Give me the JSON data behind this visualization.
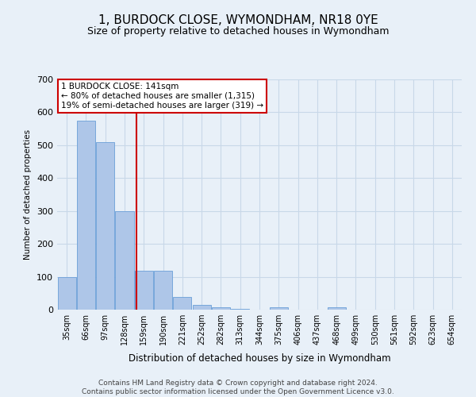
{
  "title": "1, BURDOCK CLOSE, WYMONDHAM, NR18 0YE",
  "subtitle": "Size of property relative to detached houses in Wymondham",
  "xlabel": "Distribution of detached houses by size in Wymondham",
  "ylabel": "Number of detached properties",
  "footnote": "Contains HM Land Registry data © Crown copyright and database right 2024.\nContains public sector information licensed under the Open Government Licence v3.0.",
  "bar_labels": [
    "35sqm",
    "66sqm",
    "97sqm",
    "128sqm",
    "159sqm",
    "190sqm",
    "221sqm",
    "252sqm",
    "282sqm",
    "313sqm",
    "344sqm",
    "375sqm",
    "406sqm",
    "437sqm",
    "468sqm",
    "499sqm",
    "530sqm",
    "561sqm",
    "592sqm",
    "623sqm",
    "654sqm"
  ],
  "bar_values": [
    100,
    575,
    510,
    300,
    118,
    118,
    38,
    15,
    8,
    2,
    0,
    8,
    0,
    0,
    8,
    0,
    0,
    0,
    0,
    0,
    0
  ],
  "bar_color": "#aec6e8",
  "bar_edge_color": "#6a9fd8",
  "vline_x_index": 3.62,
  "vline_color": "#cc0000",
  "ylim": [
    0,
    700
  ],
  "yticks": [
    0,
    100,
    200,
    300,
    400,
    500,
    600,
    700
  ],
  "annotation_text": "1 BURDOCK CLOSE: 141sqm\n← 80% of detached houses are smaller (1,315)\n19% of semi-detached houses are larger (319) →",
  "annotation_box_color": "#ffffff",
  "annotation_box_edge": "#cc0000",
  "grid_color": "#c8d8e8",
  "background_color": "#e8f0f8",
  "title_fontsize": 11,
  "subtitle_fontsize": 9,
  "footnote_fontsize": 6.5
}
